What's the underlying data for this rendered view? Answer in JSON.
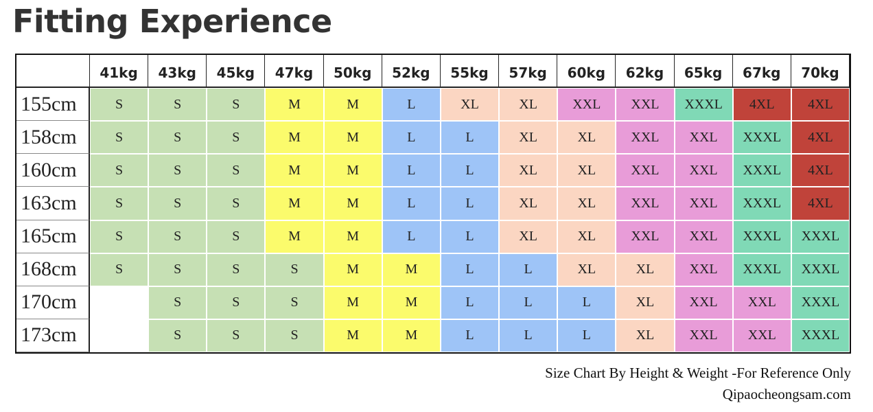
{
  "header": {
    "title": "Fitting Experience"
  },
  "table": {
    "columns": [
      "41kg",
      "43kg",
      "45kg",
      "47kg",
      "50kg",
      "52kg",
      "55kg",
      "57kg",
      "60kg",
      "62kg",
      "65kg",
      "67kg",
      "70kg"
    ],
    "palette": {
      "S": "#c6e0b4",
      "M": "#fbfb6c",
      "L": "#9ec4f7",
      "XL": "#fbd6c2",
      "XXL": "#e89cd8",
      "XXXL": "#80d9b6",
      "4XL": "#c0433a"
    },
    "rows": [
      {
        "label": "155cm",
        "cells": [
          "S",
          "S",
          "S",
          "M",
          "M",
          "L",
          "XL",
          "XL",
          "XXL",
          "XXL",
          "XXXL",
          "4XL",
          "4XL"
        ]
      },
      {
        "label": "158cm",
        "cells": [
          "S",
          "S",
          "S",
          "M",
          "M",
          "L",
          "L",
          "XL",
          "XL",
          "XXL",
          "XXL",
          "XXXL",
          "4XL"
        ]
      },
      {
        "label": "160cm",
        "cells": [
          "S",
          "S",
          "S",
          "M",
          "M",
          "L",
          "L",
          "XL",
          "XL",
          "XXL",
          "XXL",
          "XXXL",
          "4XL"
        ]
      },
      {
        "label": "163cm",
        "cells": [
          "S",
          "S",
          "S",
          "M",
          "M",
          "L",
          "L",
          "XL",
          "XL",
          "XXL",
          "XXL",
          "XXXL",
          "4XL"
        ]
      },
      {
        "label": "165cm",
        "cells": [
          "S",
          "S",
          "S",
          "M",
          "M",
          "L",
          "L",
          "XL",
          "XL",
          "XXL",
          "XXL",
          "XXXL",
          "XXXL"
        ]
      },
      {
        "label": "168cm",
        "cells": [
          "S",
          "S",
          "S",
          "S",
          "M",
          "M",
          "L",
          "L",
          "XL",
          "XL",
          "XXL",
          "XXXL",
          "XXXL"
        ]
      },
      {
        "label": "170cm",
        "cells": [
          null,
          "S",
          "S",
          "S",
          "M",
          "M",
          "L",
          "L",
          "L",
          "XL",
          "XXL",
          "XXL",
          "XXXL"
        ]
      },
      {
        "label": "173cm",
        "cells": [
          null,
          "S",
          "S",
          "S",
          "M",
          "M",
          "L",
          "L",
          "L",
          "XL",
          "XXL",
          "XXL",
          "XXXL"
        ]
      }
    ]
  },
  "footer": {
    "note": "Size Chart By Height & Weight -For Reference Only",
    "site": "Qipaocheongsam.com"
  }
}
